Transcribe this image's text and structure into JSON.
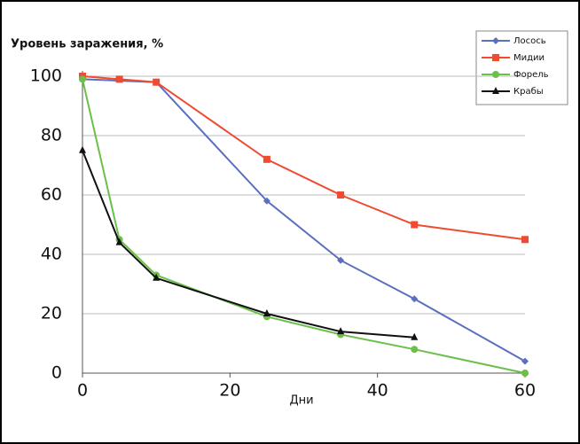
{
  "chart_data": {
    "type": "line",
    "title": "Уровень заражения, %",
    "x_label": "Дни",
    "xlim": [
      0,
      60
    ],
    "xticks": [
      0,
      20,
      40,
      60
    ],
    "ylim": [
      0,
      100
    ],
    "yticks": [
      0,
      20,
      40,
      60,
      80,
      100
    ],
    "grid": true,
    "legend": "top-right",
    "series": [
      {
        "name": "Лосось",
        "color": "#5b6fbf",
        "marker": "diamond",
        "x": [
          0,
          10,
          25,
          35,
          45,
          60
        ],
        "values": [
          99,
          98,
          58,
          38,
          25,
          4
        ]
      },
      {
        "name": "Мидии",
        "color": "#f04a30",
        "marker": "square",
        "x": [
          0,
          5,
          10,
          25,
          35,
          45,
          60
        ],
        "values": [
          100,
          99,
          98,
          72,
          60,
          50,
          45
        ]
      },
      {
        "name": "Форель",
        "color": "#6cc04a",
        "marker": "circle",
        "x": [
          0,
          5,
          10,
          25,
          35,
          45,
          60
        ],
        "values": [
          99,
          45,
          33,
          19,
          13,
          8,
          0
        ]
      },
      {
        "name": "Крабы",
        "color": "#111111",
        "marker": "triangle",
        "x": [
          0,
          5,
          10,
          25,
          35,
          45
        ],
        "values": [
          75,
          44,
          32,
          20,
          14,
          12
        ]
      }
    ]
  }
}
